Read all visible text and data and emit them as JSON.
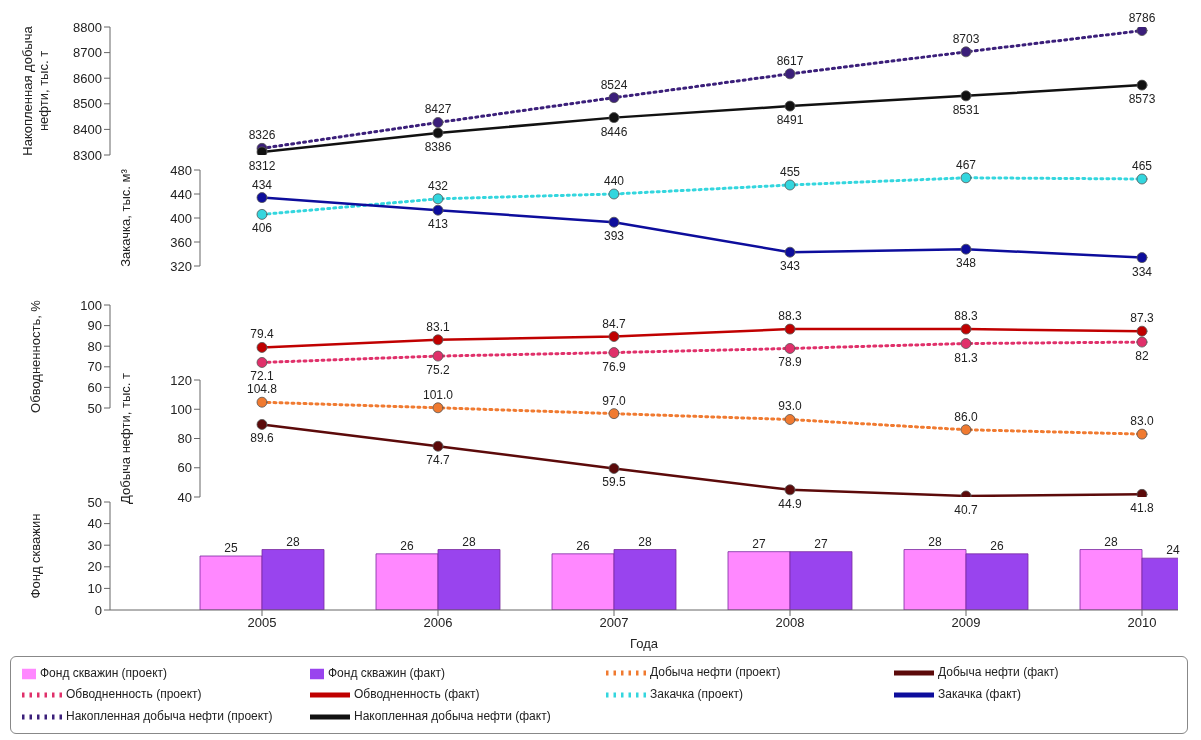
{
  "chart_data": [
    {
      "type": "line",
      "ylabel": "Накопленная добыча нефти, тыс. т",
      "categories": [
        "2005",
        "2006",
        "2007",
        "2008",
        "2009",
        "2010"
      ],
      "ylim": [
        8300,
        8800
      ],
      "yticks": [
        8300,
        8400,
        8500,
        8600,
        8700,
        8800
      ],
      "marker": "circle",
      "data_labels": true,
      "legend": "bottom",
      "tick_labels": "y",
      "series": [
        {
          "name": "Накопленная добыча нефти (проект)",
          "color": "#3b1f7a",
          "line_style": "dotted",
          "values": [
            8326,
            8427,
            8524,
            8617,
            8703,
            8786
          ]
        },
        {
          "name": "Накопленная добыча нефти (факт)",
          "color": "#111111",
          "line_style": "solid",
          "values": [
            8312,
            8386,
            8446,
            8491,
            8531,
            8573
          ]
        }
      ]
    },
    {
      "type": "line",
      "ylabel": "Закачка, тыс. м³",
      "categories": [
        "2005",
        "2006",
        "2007",
        "2008",
        "2009",
        "2010"
      ],
      "ylim": [
        320,
        480
      ],
      "yticks": [
        320,
        360,
        400,
        440,
        480
      ],
      "marker": "circle",
      "data_labels": true,
      "legend": "bottom",
      "tick_labels": "y",
      "series": [
        {
          "name": "Закачка (проект)",
          "color": "#33d6de",
          "line_style": "dotted",
          "values": [
            406,
            432,
            440,
            455,
            467,
            465
          ]
        },
        {
          "name": "Закачка (факт)",
          "color": "#0d0d9c",
          "line_style": "solid",
          "values": [
            434,
            413,
            393,
            343,
            348,
            334
          ]
        }
      ]
    },
    {
      "type": "line",
      "ylabel": "Обводненность, %",
      "categories": [
        "2005",
        "2006",
        "2007",
        "2008",
        "2009",
        "2010"
      ],
      "ylim": [
        50,
        100
      ],
      "yticks": [
        50,
        60,
        70,
        80,
        90,
        100
      ],
      "marker": "circle",
      "data_labels": true,
      "legend": "bottom",
      "tick_labels": "y",
      "series": [
        {
          "name": "Обводненность (проект)",
          "color": "#e0306a",
          "line_style": "dotted",
          "values": [
            72.1,
            75.2,
            76.9,
            78.9,
            81.3,
            82
          ]
        },
        {
          "name": "Обводненность (факт)",
          "color": "#c00000",
          "line_style": "solid",
          "values": [
            79.4,
            83.1,
            84.7,
            88.3,
            88.3,
            87.3
          ]
        }
      ]
    },
    {
      "type": "line",
      "ylabel": "Добыча нефти, тыс. т",
      "categories": [
        "2005",
        "2006",
        "2007",
        "2008",
        "2009",
        "2010"
      ],
      "ylim": [
        40,
        120
      ],
      "yticks": [
        40,
        60,
        80,
        100,
        120
      ],
      "marker": "circle",
      "legend": "bottom",
      "tick_labels": "y",
      "series": [
        {
          "name": "Добыча нефти (проект)",
          "color": "#f07a30",
          "line_style": "dotted",
          "values": [
            104.8,
            101.0,
            97.0,
            93.0,
            86.0,
            83.0
          ],
          "value_labels": [
            "104.8",
            "101.0",
            "97.0",
            "93.0",
            "86.0",
            "83.0"
          ]
        },
        {
          "name": "Добыча нефти (факт)",
          "color": "#5c0a0a",
          "line_style": "solid",
          "values": [
            89.6,
            74.7,
            59.5,
            44.9,
            40.7,
            41.8
          ],
          "value_labels": [
            "89.6",
            "74.7",
            "59.5",
            "44.9",
            "40.7",
            "41.8"
          ]
        }
      ]
    },
    {
      "type": "bar",
      "ylabel": "Фонд скважин",
      "xlabel": "Года",
      "categories": [
        "2005",
        "2006",
        "2007",
        "2008",
        "2009",
        "2010"
      ],
      "ylim": [
        0,
        50
      ],
      "yticks": [
        0,
        10,
        20,
        30,
        40,
        50
      ],
      "data_labels": true,
      "legend": "bottom",
      "series": [
        {
          "name": "Фонд скважин (проект)",
          "color": "#ff88ff",
          "values": [
            25,
            26,
            26,
            27,
            28,
            28
          ]
        },
        {
          "name": "Фонд скважин (факт)",
          "color": "#9944ee",
          "values": [
            28,
            28,
            28,
            27,
            26,
            24
          ]
        }
      ]
    }
  ]
}
